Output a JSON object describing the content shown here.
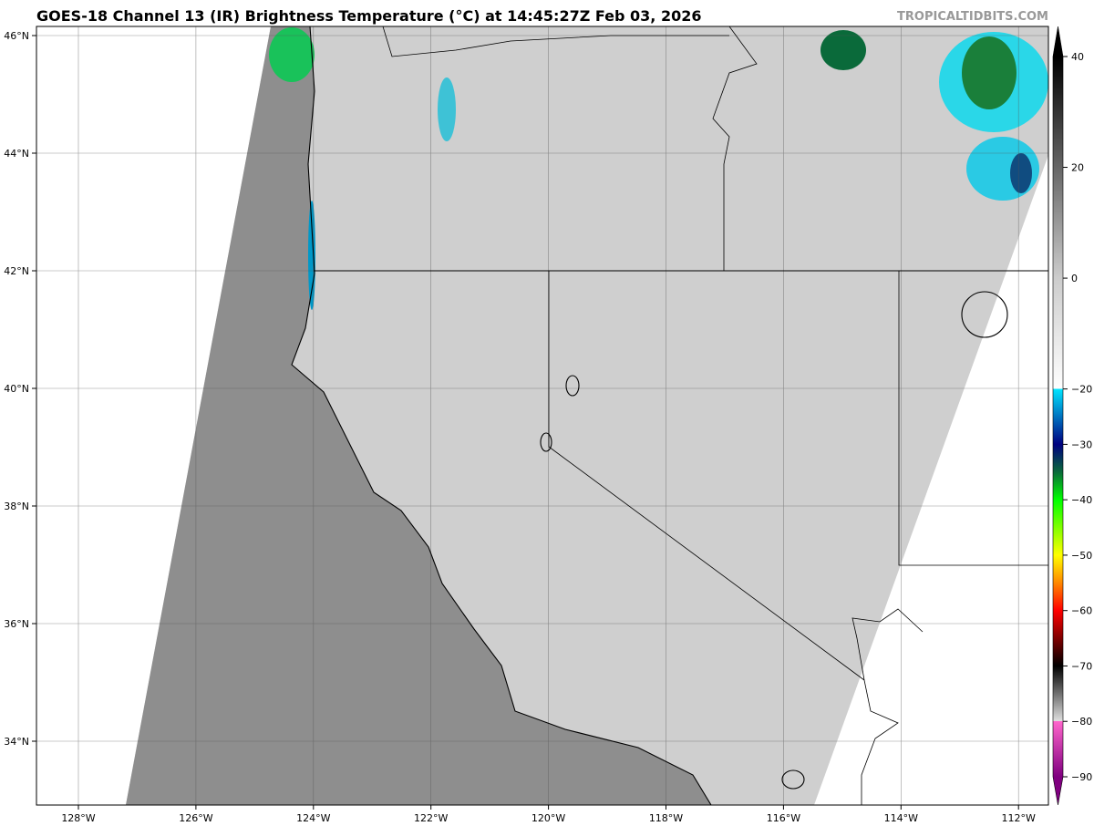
{
  "header": {
    "title": "GOES-18 Channel 13 (IR) Brightness Temperature (°C) at 14:45:27Z Feb 03, 2026",
    "credit": "TROPICALTIDBITS.COM"
  },
  "map": {
    "lon_labels": [
      "128°W",
      "126°W",
      "124°W",
      "122°W",
      "120°W",
      "118°W",
      "116°W",
      "114°W",
      "112°W"
    ],
    "lat_labels": [
      "46°N",
      "44°N",
      "42°N",
      "40°N",
      "38°N",
      "36°N",
      "34°N"
    ],
    "colors": {
      "ocean": "#8e8e8e",
      "land": "#cfcfcf",
      "outside": "#ffffff",
      "border": "#000000"
    }
  },
  "colorbar": {
    "labels": [
      "40",
      "20",
      "0",
      "−20",
      "−30",
      "−40",
      "−50",
      "−60",
      "−70",
      "−80",
      "−90"
    ],
    "values": [
      40,
      20,
      0,
      -20,
      -30,
      -40,
      -50,
      -60,
      -70,
      -80,
      -90
    ],
    "stops": [
      [
        40,
        "#000000"
      ],
      [
        0,
        "#cccccc"
      ],
      [
        -20,
        "#ffffff"
      ],
      [
        -20,
        "#00e5ff"
      ],
      [
        -30,
        "#000080"
      ],
      [
        -35,
        "#0a6a3a"
      ],
      [
        -40,
        "#00ff00"
      ],
      [
        -50,
        "#ffff00"
      ],
      [
        -55,
        "#ff8800"
      ],
      [
        -60,
        "#ff0000"
      ],
      [
        -70,
        "#000000"
      ],
      [
        -80,
        "#e0e0e0"
      ],
      [
        -80,
        "#ff66cc"
      ],
      [
        -90,
        "#800080"
      ]
    ]
  }
}
